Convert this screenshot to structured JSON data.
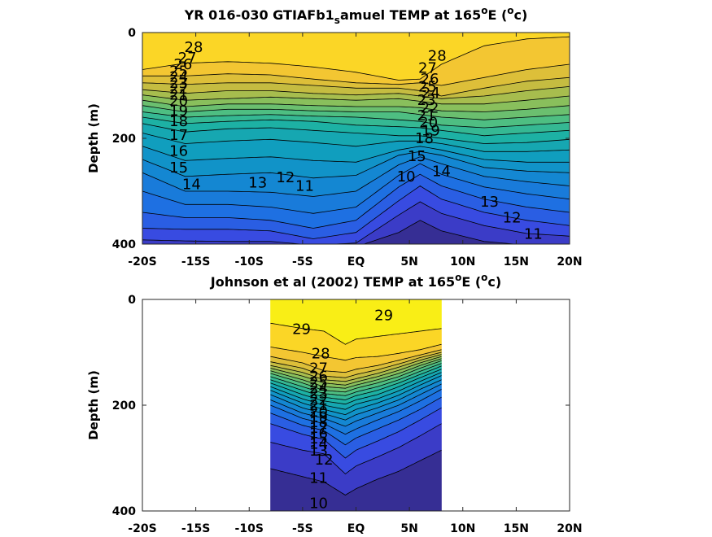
{
  "chart_data": [
    {
      "type": "heatmap",
      "subtype": "contour",
      "title": "YR 016-030 GTIAFb1_samuel TEMP at 165°E (°c)",
      "title_parts": {
        "main": "YR 016-030 GTIAFb1",
        "sub": "s",
        "rest": "amuel TEMP at 165",
        "deg1": "o",
        "post": "E (",
        "deg2": "o",
        "end": "c)"
      },
      "xlabel": "",
      "ylabel": "Depth (m)",
      "xlim": [
        -20,
        20
      ],
      "ylim": [
        400,
        0
      ],
      "x_ticks": [
        -20,
        -15,
        -10,
        -5,
        0,
        5,
        10,
        15,
        20
      ],
      "x_tick_labels": [
        "-20S",
        "-15S",
        "-10S",
        "-5S",
        "EQ",
        "5N",
        "10N",
        "15N",
        "20N"
      ],
      "y_ticks": [
        0,
        200,
        400
      ],
      "y_tick_labels": [
        "0",
        "200",
        "400"
      ],
      "colormap": "parula",
      "color_range": [
        9,
        30
      ],
      "data_extent_x": [
        -20,
        20
      ],
      "contour_interval": 1,
      "isotherm_depths": {
        "x": [
          -20,
          -16,
          -12,
          -8,
          -4,
          0,
          4,
          6,
          8,
          12,
          16,
          20
        ],
        "levels": {
          "28": [
            70,
            58,
            55,
            58,
            65,
            75,
            90,
            88,
            60,
            25,
            12,
            8
          ],
          "27": [
            82,
            82,
            78,
            80,
            88,
            95,
            98,
            95,
            100,
            85,
            70,
            60
          ],
          "26": [
            95,
            98,
            95,
            95,
            100,
            105,
            105,
            110,
            120,
            105,
            92,
            85
          ],
          "25": [
            108,
            115,
            110,
            110,
            115,
            118,
            115,
            120,
            125,
            120,
            110,
            102
          ],
          "24": [
            118,
            128,
            125,
            122,
            125,
            128,
            125,
            130,
            135,
            135,
            128,
            120
          ],
          "23": [
            128,
            140,
            135,
            135,
            138,
            140,
            140,
            142,
            148,
            150,
            145,
            138
          ],
          "22": [
            138,
            150,
            145,
            145,
            148,
            150,
            150,
            155,
            160,
            165,
            160,
            155
          ],
          "21": [
            150,
            160,
            157,
            155,
            158,
            160,
            165,
            168,
            175,
            180,
            175,
            170
          ],
          "20": [
            160,
            172,
            168,
            165,
            168,
            175,
            178,
            180,
            185,
            195,
            190,
            185
          ],
          "19": [
            172,
            188,
            182,
            180,
            185,
            190,
            195,
            195,
            200,
            210,
            208,
            202
          ],
          "18": [
            190,
            210,
            205,
            202,
            208,
            215,
            205,
            205,
            210,
            225,
            225,
            222
          ],
          "17": [
            215,
            242,
            238,
            235,
            242,
            245,
            222,
            215,
            222,
            240,
            245,
            245
          ],
          "16": [
            240,
            272,
            268,
            265,
            275,
            270,
            232,
            225,
            232,
            255,
            262,
            265
          ],
          "15": [
            265,
            300,
            300,
            302,
            310,
            300,
            250,
            235,
            248,
            272,
            282,
            290
          ],
          "14": [
            300,
            325,
            325,
            330,
            342,
            330,
            270,
            248,
            268,
            292,
            305,
            315
          ],
          "13": [
            340,
            350,
            350,
            355,
            370,
            355,
            292,
            268,
            290,
            315,
            330,
            340
          ],
          "12": [
            370,
            372,
            372,
            375,
            390,
            378,
            318,
            290,
            315,
            340,
            355,
            365
          ],
          "11": [
            392,
            394,
            395,
            395,
            402,
            398,
            345,
            320,
            342,
            365,
            380,
            385
          ],
          "10": [
            405,
            405,
            405,
            405,
            408,
            405,
            378,
            355,
            375,
            395,
            402,
            405
          ]
        }
      },
      "contour_labels": [
        {
          "text": "28",
          "x": -15.2,
          "y": 28
        },
        {
          "text": "27",
          "x": -15.8,
          "y": 48
        },
        {
          "text": "26",
          "x": -16.2,
          "y": 60
        },
        {
          "text": "25",
          "x": -16.6,
          "y": 73
        },
        {
          "text": "24",
          "x": -16.6,
          "y": 84
        },
        {
          "text": "23",
          "x": -16.6,
          "y": 95
        },
        {
          "text": "22",
          "x": -16.6,
          "y": 106
        },
        {
          "text": "21",
          "x": -16.6,
          "y": 118
        },
        {
          "text": "20",
          "x": -16.6,
          "y": 129
        },
        {
          "text": "19",
          "x": -16.6,
          "y": 148
        },
        {
          "text": "18",
          "x": -16.6,
          "y": 168
        },
        {
          "text": "17",
          "x": -16.6,
          "y": 194
        },
        {
          "text": "16",
          "x": -16.6,
          "y": 224
        },
        {
          "text": "15",
          "x": -16.6,
          "y": 255
        },
        {
          "text": "14",
          "x": -15.4,
          "y": 287
        },
        {
          "text": "13",
          "x": -9.2,
          "y": 284
        },
        {
          "text": "12",
          "x": -6.6,
          "y": 274
        },
        {
          "text": "11",
          "x": -4.8,
          "y": 290
        },
        {
          "text": "10",
          "x": 4.7,
          "y": 272
        },
        {
          "text": "28",
          "x": 7.6,
          "y": 44
        },
        {
          "text": "27",
          "x": 6.7,
          "y": 67
        },
        {
          "text": "26",
          "x": 6.9,
          "y": 88
        },
        {
          "text": "25",
          "x": 6.7,
          "y": 102
        },
        {
          "text": "24",
          "x": 7.0,
          "y": 114
        },
        {
          "text": "23",
          "x": 6.6,
          "y": 128
        },
        {
          "text": "22",
          "x": 6.9,
          "y": 142
        },
        {
          "text": "21",
          "x": 6.6,
          "y": 157
        },
        {
          "text": "20",
          "x": 6.8,
          "y": 170
        },
        {
          "text": "19",
          "x": 7.0,
          "y": 185
        },
        {
          "text": "18",
          "x": 6.4,
          "y": 200
        },
        {
          "text": "15",
          "x": 5.7,
          "y": 234
        },
        {
          "text": "14",
          "x": 8.0,
          "y": 262
        },
        {
          "text": "13",
          "x": 12.5,
          "y": 320
        },
        {
          "text": "12",
          "x": 14.6,
          "y": 350
        },
        {
          "text": "11",
          "x": 16.6,
          "y": 381
        }
      ]
    },
    {
      "type": "heatmap",
      "subtype": "contour",
      "title": "Johnson et al (2002) TEMP at 165°E (°c)",
      "title_parts": {
        "main": "Johnson et al (2002) TEMP at 165",
        "deg1": "o",
        "post": "E (",
        "deg2": "o",
        "end": "c)"
      },
      "xlabel": "",
      "ylabel": "Depth (m)",
      "xlim": [
        -20,
        20
      ],
      "ylim": [
        400,
        0
      ],
      "x_ticks": [
        -20,
        -15,
        -10,
        -5,
        0,
        5,
        10,
        15,
        20
      ],
      "x_tick_labels": [
        "-20S",
        "-15S",
        "-10S",
        "-5S",
        "EQ",
        "5N",
        "10N",
        "15N",
        "20N"
      ],
      "y_ticks": [
        0,
        200,
        400
      ],
      "y_tick_labels": [
        "0",
        "200",
        "400"
      ],
      "colormap": "parula",
      "color_range": [
        9,
        30
      ],
      "data_extent_x": [
        -8,
        8
      ],
      "contour_interval": 1,
      "isotherm_depths": {
        "x": [
          -8,
          -5,
          -3,
          -1,
          0,
          2,
          4,
          6,
          8
        ],
        "levels": {
          "29": [
            45,
            55,
            60,
            85,
            75,
            70,
            65,
            60,
            55
          ],
          "28": [
            90,
            100,
            108,
            115,
            110,
            108,
            102,
            95,
            85
          ],
          "27": [
            108,
            120,
            135,
            138,
            132,
            125,
            115,
            105,
            95
          ],
          "26": [
            118,
            130,
            145,
            148,
            142,
            133,
            122,
            110,
            100
          ],
          "25": [
            125,
            138,
            152,
            155,
            150,
            140,
            128,
            115,
            104
          ],
          "24": [
            130,
            145,
            158,
            162,
            156,
            146,
            134,
            120,
            108
          ],
          "23": [
            135,
            152,
            165,
            168,
            162,
            152,
            140,
            125,
            112
          ],
          "22": [
            140,
            158,
            172,
            175,
            168,
            158,
            146,
            130,
            116
          ],
          "21": [
            146,
            165,
            178,
            182,
            175,
            165,
            152,
            136,
            121
          ],
          "20": [
            152,
            172,
            185,
            190,
            182,
            172,
            158,
            142,
            126
          ],
          "19": [
            158,
            180,
            192,
            198,
            190,
            180,
            165,
            148,
            132
          ],
          "18": [
            165,
            188,
            200,
            208,
            198,
            188,
            173,
            155,
            138
          ],
          "17": [
            172,
            196,
            208,
            218,
            208,
            196,
            181,
            162,
            144
          ],
          "16": [
            180,
            205,
            216,
            228,
            218,
            205,
            190,
            170,
            152
          ],
          "15": [
            190,
            215,
            225,
            240,
            230,
            215,
            200,
            180,
            160
          ],
          "14": [
            200,
            225,
            235,
            255,
            245,
            228,
            212,
            192,
            170
          ],
          "13": [
            215,
            238,
            248,
            275,
            262,
            245,
            228,
            208,
            185
          ],
          "12": [
            235,
            255,
            265,
            300,
            285,
            268,
            250,
            228,
            205
          ],
          "11": [
            270,
            285,
            292,
            330,
            315,
            298,
            280,
            258,
            235
          ],
          "10": [
            320,
            335,
            345,
            370,
            358,
            340,
            325,
            305,
            285
          ]
        }
      },
      "contour_labels": [
        {
          "text": "29",
          "x": -5.1,
          "y": 56
        },
        {
          "text": "29",
          "x": 2.6,
          "y": 30
        },
        {
          "text": "28",
          "x": -3.3,
          "y": 102
        },
        {
          "text": "27",
          "x": -3.5,
          "y": 130
        },
        {
          "text": "26",
          "x": -3.5,
          "y": 145
        },
        {
          "text": "25",
          "x": -3.5,
          "y": 157
        },
        {
          "text": "24",
          "x": -3.5,
          "y": 168
        },
        {
          "text": "23",
          "x": -3.5,
          "y": 178
        },
        {
          "text": "22",
          "x": -3.5,
          "y": 190
        },
        {
          "text": "21",
          "x": -3.5,
          "y": 200
        },
        {
          "text": "20",
          "x": -3.5,
          "y": 212
        },
        {
          "text": "19",
          "x": -3.5,
          "y": 222
        },
        {
          "text": "18",
          "x": -3.5,
          "y": 232
        },
        {
          "text": "17",
          "x": -3.5,
          "y": 243
        },
        {
          "text": "16",
          "x": -3.5,
          "y": 253
        },
        {
          "text": "15",
          "x": -3.5,
          "y": 263
        },
        {
          "text": "14",
          "x": -3.5,
          "y": 273
        },
        {
          "text": "13",
          "x": -3.5,
          "y": 286
        },
        {
          "text": "12",
          "x": -3.0,
          "y": 303
        },
        {
          "text": "11",
          "x": -3.5,
          "y": 338
        },
        {
          "text": "10",
          "x": -3.5,
          "y": 385
        }
      ]
    }
  ]
}
